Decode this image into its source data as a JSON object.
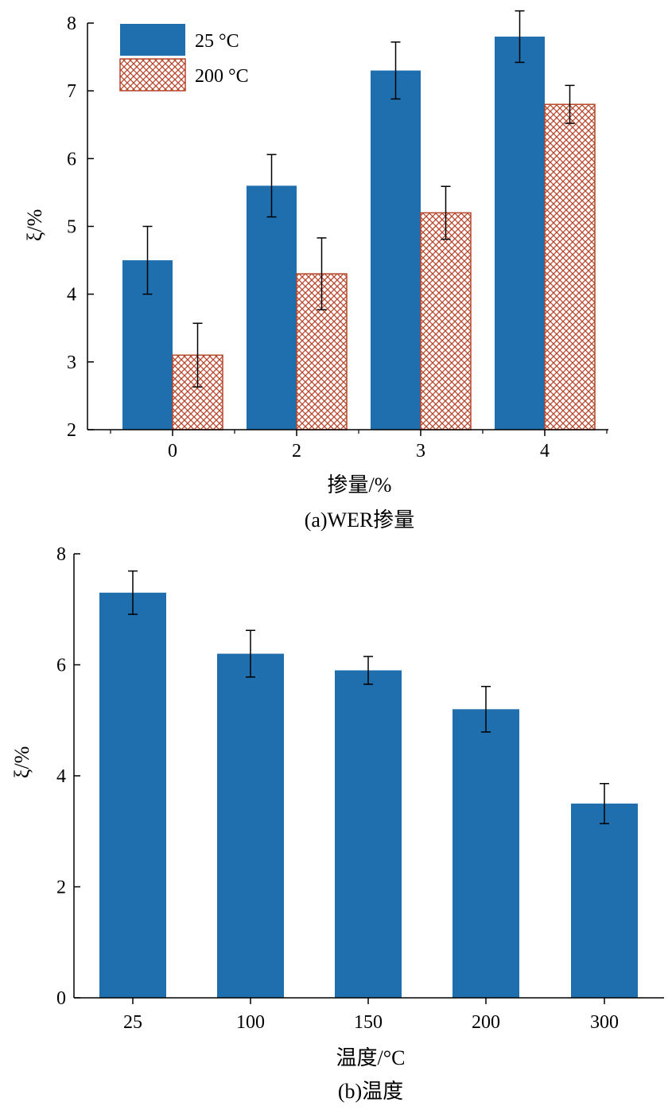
{
  "chart_data": [
    {
      "type": "bar",
      "caption": "(a)WER掺量",
      "xlabel": "掺量/%",
      "ylabel": "ξ/%",
      "ylim": [
        2,
        8
      ],
      "yticks": [
        2,
        3,
        4,
        5,
        6,
        7,
        8
      ],
      "categories": [
        "0",
        "2",
        "3",
        "4"
      ],
      "legend_position": "top-left",
      "series": [
        {
          "name": "25 °C",
          "fill": "#1f6eae",
          "pattern": "solid",
          "values": [
            4.5,
            5.6,
            7.3,
            7.8
          ],
          "errors": [
            0.5,
            0.46,
            0.42,
            0.38
          ]
        },
        {
          "name": "200 °C",
          "fill": "#b5472a",
          "pattern": "crosshatch",
          "values": [
            3.1,
            4.3,
            5.2,
            6.8
          ],
          "errors": [
            0.47,
            0.53,
            0.39,
            0.28
          ]
        }
      ]
    },
    {
      "type": "bar",
      "caption": "(b)温度",
      "xlabel": "温度/°C",
      "ylabel": "ξ/%",
      "ylim": [
        0,
        8
      ],
      "yticks": [
        0,
        2,
        4,
        6,
        8
      ],
      "categories": [
        "25",
        "100",
        "150",
        "200",
        "300"
      ],
      "series": [
        {
          "fill": "#1f6eae",
          "pattern": "solid",
          "values": [
            7.3,
            6.2,
            5.9,
            5.2,
            3.5
          ],
          "errors": [
            0.39,
            0.42,
            0.25,
            0.41,
            0.36
          ]
        }
      ]
    }
  ]
}
